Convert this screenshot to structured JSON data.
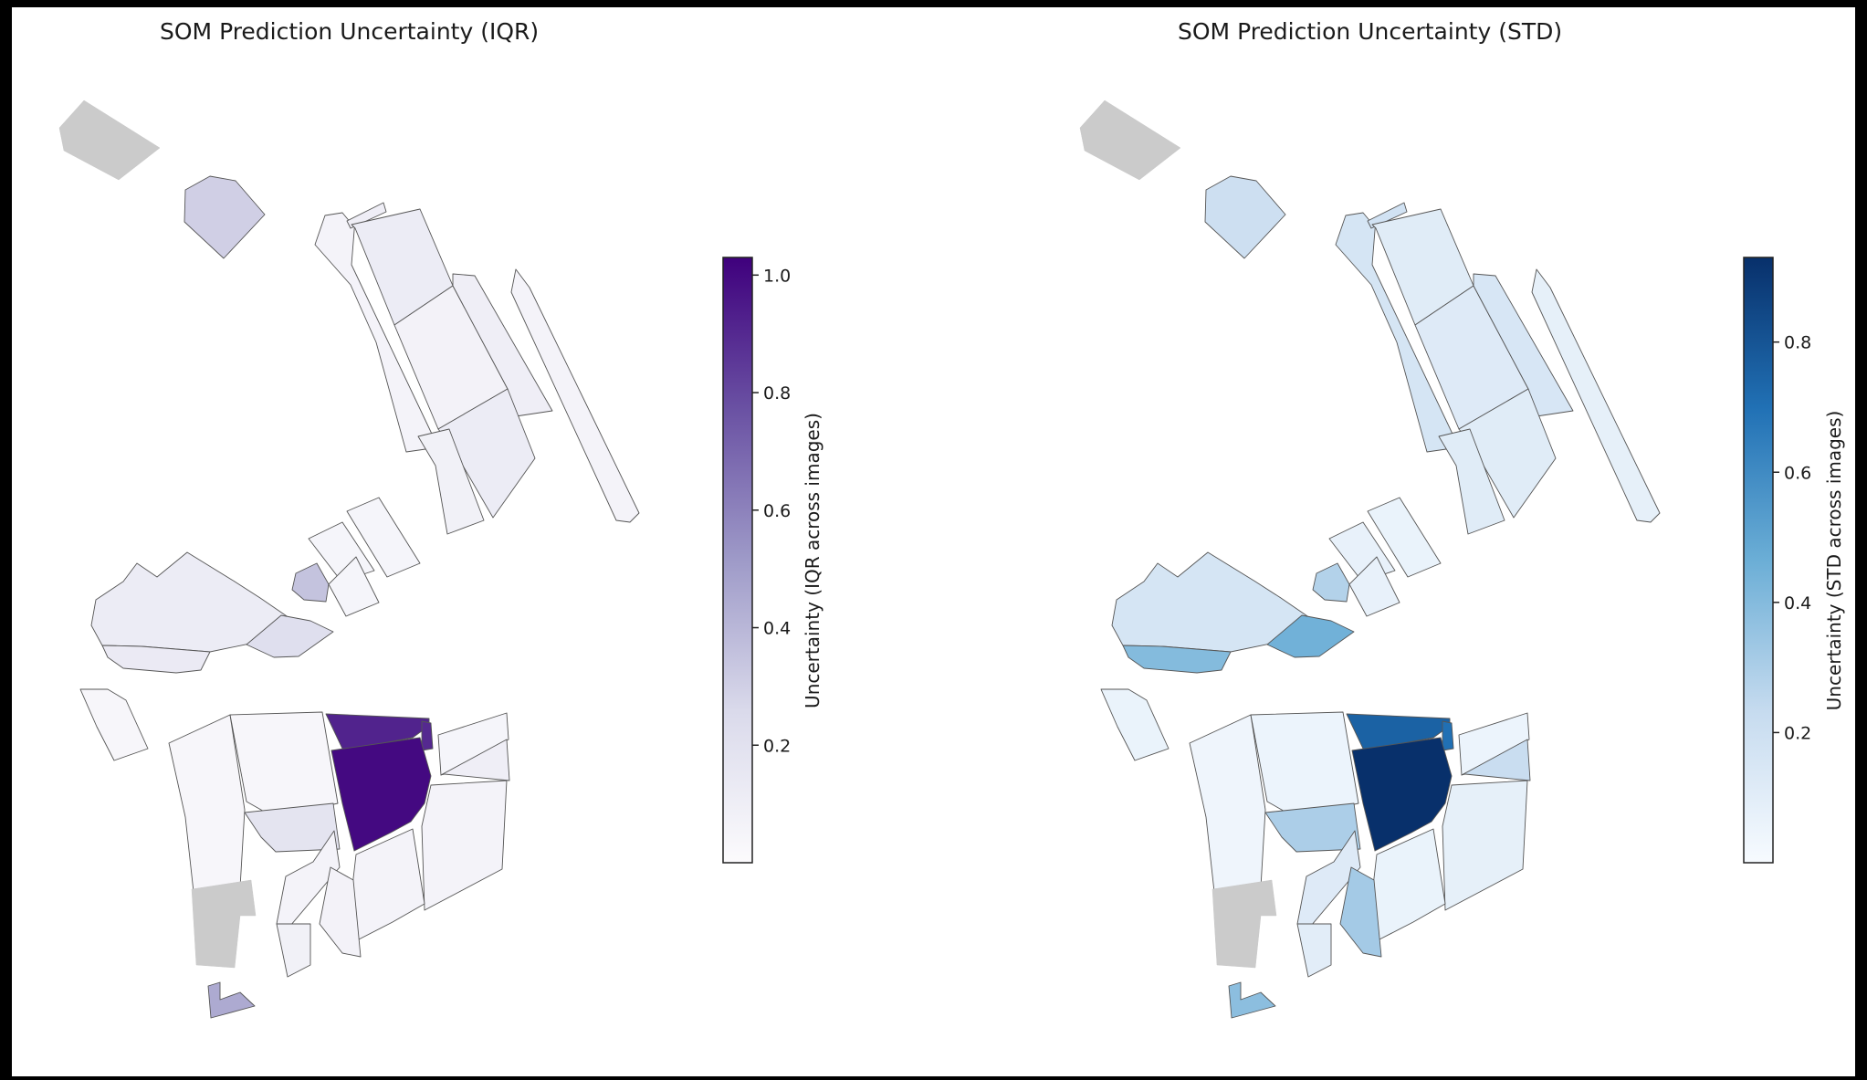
{
  "panels": [
    {
      "title": "SOM Prediction Uncertainty (IQR)",
      "colorbar": {
        "label": "Uncertainty (IQR across images)",
        "ticks": [
          "0.2",
          "0.4",
          "0.6",
          "0.8",
          "1.0"
        ],
        "tick_values": [
          0.2,
          0.4,
          0.6,
          0.8,
          1.0
        ],
        "range": [
          0.0,
          1.03
        ],
        "colormap": "Purples",
        "color_low": "#fcfbfd",
        "color_high": "#3f007d"
      },
      "parcel_values": {
        "nw_top": null,
        "nw_small": 0.3,
        "strip_a": 0.06,
        "block_n1": 0.12,
        "tiny_n": 0.1,
        "block_n2": 0.07,
        "strip_b": 0.1,
        "block_n3": 0.12,
        "block_n4": 0.08,
        "rail": 0.06,
        "c_a": 0.05,
        "c_b": 0.05,
        "c_c": 0.05,
        "c_small": 0.35,
        "w_big": 0.12,
        "w_low": 0.13,
        "w_east": 0.22,
        "sw_isle": 0.04,
        "s_w1": 0.04,
        "s_w2": 0.04,
        "s_mid": 0.18,
        "s_top": 0.92,
        "s_top_r": 0.9,
        "s_dark": 1.0,
        "s_e1": 0.05,
        "s_e2": 0.1,
        "s_e3": 0.06,
        "s_e4": 0.06,
        "s_gray": null,
        "s_a": 0.06,
        "s_b": 0.07,
        "s_c": 0.08,
        "s_south": 0.45
      }
    },
    {
      "title": "SOM Prediction Uncertainty (STD)",
      "colorbar": {
        "label": "Uncertainty (STD across images)",
        "ticks": [
          "0.2",
          "0.4",
          "0.6",
          "0.8"
        ],
        "tick_values": [
          0.2,
          0.4,
          0.6,
          0.8
        ],
        "range": [
          0.0,
          0.93
        ],
        "colormap": "Blues",
        "color_low": "#f7fbff",
        "color_high": "#08306b"
      },
      "parcel_values": {
        "nw_top": null,
        "nw_small": 0.2,
        "strip_a": 0.16,
        "block_n1": 0.11,
        "tiny_n": 0.18,
        "block_n2": 0.12,
        "strip_b": 0.15,
        "block_n3": 0.11,
        "block_n4": 0.11,
        "rail": 0.08,
        "c_a": 0.07,
        "c_b": 0.06,
        "c_c": 0.07,
        "c_small": 0.28,
        "w_big": 0.16,
        "w_low": 0.4,
        "w_east": 0.45,
        "sw_isle": 0.06,
        "s_w1": 0.04,
        "s_w2": 0.05,
        "s_mid": 0.3,
        "s_top": 0.75,
        "s_top_r": 0.7,
        "s_dark": 0.93,
        "s_e1": 0.05,
        "s_e2": 0.22,
        "s_e3": 0.08,
        "s_e4": 0.06,
        "s_gray": null,
        "s_a": 0.12,
        "s_b": 0.32,
        "s_c": 0.1,
        "s_south": 0.38
      }
    }
  ],
  "missing_color": "#cbcbcb",
  "outline_color": "#555555"
}
